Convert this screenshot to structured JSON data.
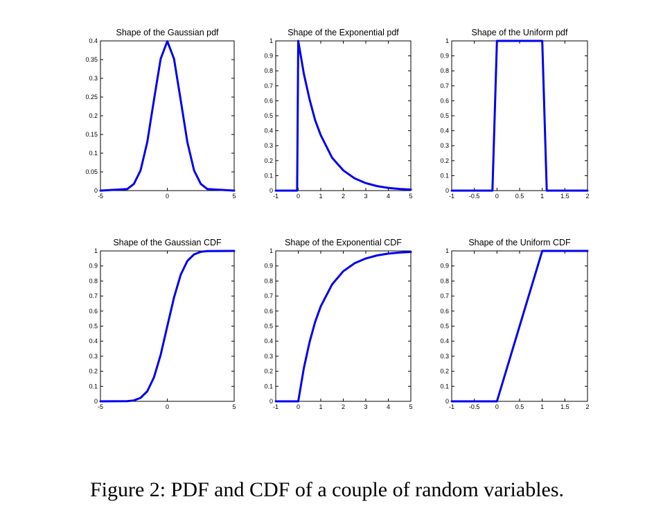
{
  "caption": "Figure 2: PDF and CDF of a couple of random variables.",
  "colors": {
    "series": "#0000ee",
    "axes": "#000000",
    "background": "#ffffff"
  },
  "chart_data": [
    {
      "type": "line",
      "title": "Shape of the Gaussian pdf",
      "xlabel": "",
      "ylabel": "",
      "xlim": [
        -5,
        5
      ],
      "ylim": [
        0,
        0.4
      ],
      "xticks": [
        -5,
        0,
        5
      ],
      "xtick_labels": [
        "-5",
        "0",
        "5"
      ],
      "yticks": [
        0,
        0.05,
        0.1,
        0.15,
        0.2,
        0.25,
        0.3,
        0.35,
        0.4
      ],
      "ytick_labels": [
        "0",
        "0.05",
        "0.1",
        "0.15",
        "0.2",
        "0.25",
        "0.3",
        "0.35",
        "0.4"
      ],
      "grid": false,
      "series": [
        {
          "x": [
            -5,
            -3,
            -2.5,
            -2,
            -1.5,
            -1,
            -0.5,
            0,
            0.5,
            1,
            1.5,
            2,
            2.5,
            3,
            5
          ],
          "values": [
            0,
            0.004,
            0.018,
            0.054,
            0.13,
            0.242,
            0.352,
            0.399,
            0.352,
            0.242,
            0.13,
            0.054,
            0.018,
            0.004,
            0
          ]
        }
      ]
    },
    {
      "type": "line",
      "title": "Shape of the Exponential pdf",
      "xlabel": "",
      "ylabel": "",
      "xlim": [
        -1,
        5
      ],
      "ylim": [
        0,
        1
      ],
      "xticks": [
        -1,
        0,
        1,
        2,
        3,
        4,
        5
      ],
      "xtick_labels": [
        "-1",
        "0",
        "1",
        "2",
        "3",
        "4",
        "5"
      ],
      "yticks": [
        0,
        0.1,
        0.2,
        0.3,
        0.4,
        0.5,
        0.6,
        0.7,
        0.8,
        0.9,
        1
      ],
      "ytick_labels": [
        "0",
        "0.1",
        "0.2",
        "0.3",
        "0.4",
        "0.5",
        "0.6",
        "0.7",
        "0.8",
        "0.9",
        "1"
      ],
      "grid": false,
      "series": [
        {
          "x": [
            -1,
            -0.05,
            0,
            0.25,
            0.5,
            0.75,
            1,
            1.5,
            2,
            2.5,
            3,
            3.5,
            4,
            4.5,
            5
          ],
          "values": [
            0,
            0,
            1,
            0.78,
            0.61,
            0.47,
            0.37,
            0.22,
            0.135,
            0.082,
            0.05,
            0.03,
            0.018,
            0.011,
            0.007
          ]
        }
      ]
    },
    {
      "type": "line",
      "title": "Shape of the Uniform pdf",
      "xlabel": "",
      "ylabel": "",
      "xlim": [
        -1,
        2
      ],
      "ylim": [
        0,
        1
      ],
      "xticks": [
        -1,
        -0.5,
        0,
        0.5,
        1,
        1.5,
        2
      ],
      "xtick_labels": [
        "-1",
        "-0.5",
        "0",
        "0.5",
        "1",
        "1.5",
        "2"
      ],
      "yticks": [
        0,
        0.1,
        0.2,
        0.3,
        0.4,
        0.5,
        0.6,
        0.7,
        0.8,
        0.9,
        1
      ],
      "ytick_labels": [
        "0",
        "0.1",
        "0.2",
        "0.3",
        "0.4",
        "0.5",
        "0.6",
        "0.7",
        "0.8",
        "0.9",
        "1"
      ],
      "grid": false,
      "series": [
        {
          "x": [
            -1,
            -0.1,
            0,
            1,
            1.1,
            2
          ],
          "values": [
            0,
            0,
            1,
            1,
            0,
            0
          ]
        }
      ]
    },
    {
      "type": "line",
      "title": "Shape of the Gaussian CDF",
      "xlabel": "",
      "ylabel": "",
      "xlim": [
        -5,
        5
      ],
      "ylim": [
        0,
        1
      ],
      "xticks": [
        -5,
        0,
        5
      ],
      "xtick_labels": [
        "-5",
        "0",
        "5"
      ],
      "yticks": [
        0,
        0.1,
        0.2,
        0.3,
        0.4,
        0.5,
        0.6,
        0.7,
        0.8,
        0.9,
        1
      ],
      "ytick_labels": [
        "0",
        "0.1",
        "0.2",
        "0.3",
        "0.4",
        "0.5",
        "0.6",
        "0.7",
        "0.8",
        "0.9",
        "1"
      ],
      "grid": false,
      "series": [
        {
          "x": [
            -5,
            -3,
            -2.5,
            -2,
            -1.5,
            -1,
            -0.5,
            0,
            0.5,
            1,
            1.5,
            2,
            2.5,
            3,
            5
          ],
          "values": [
            0,
            0.001,
            0.006,
            0.023,
            0.067,
            0.159,
            0.309,
            0.5,
            0.691,
            0.841,
            0.933,
            0.977,
            0.994,
            0.999,
            1
          ]
        }
      ]
    },
    {
      "type": "line",
      "title": "Shape of the Exponential CDF",
      "xlabel": "",
      "ylabel": "",
      "xlim": [
        -1,
        5
      ],
      "ylim": [
        0,
        1
      ],
      "xticks": [
        -1,
        0,
        1,
        2,
        3,
        4,
        5
      ],
      "xtick_labels": [
        "-1",
        "0",
        "1",
        "2",
        "3",
        "4",
        "5"
      ],
      "yticks": [
        0,
        0.1,
        0.2,
        0.3,
        0.4,
        0.5,
        0.6,
        0.7,
        0.8,
        0.9,
        1
      ],
      "ytick_labels": [
        "0",
        "0.1",
        "0.2",
        "0.3",
        "0.4",
        "0.5",
        "0.6",
        "0.7",
        "0.8",
        "0.9",
        "1"
      ],
      "grid": false,
      "series": [
        {
          "x": [
            -1,
            0,
            0.25,
            0.5,
            0.75,
            1,
            1.5,
            2,
            2.5,
            3,
            3.5,
            4,
            4.5,
            5
          ],
          "values": [
            0,
            0,
            0.221,
            0.393,
            0.528,
            0.632,
            0.777,
            0.865,
            0.918,
            0.95,
            0.97,
            0.982,
            0.989,
            0.993
          ]
        }
      ]
    },
    {
      "type": "line",
      "title": "Shape of the Uniform CDF",
      "xlabel": "",
      "ylabel": "",
      "xlim": [
        -1,
        2
      ],
      "ylim": [
        0,
        1
      ],
      "xticks": [
        -1,
        -0.5,
        0,
        0.5,
        1,
        1.5,
        2
      ],
      "xtick_labels": [
        "-1",
        "-0.5",
        "0",
        "0.5",
        "1",
        "1.5",
        "2"
      ],
      "yticks": [
        0,
        0.1,
        0.2,
        0.3,
        0.4,
        0.5,
        0.6,
        0.7,
        0.8,
        0.9,
        1
      ],
      "ytick_labels": [
        "0",
        "0.1",
        "0.2",
        "0.3",
        "0.4",
        "0.5",
        "0.6",
        "0.7",
        "0.8",
        "0.9",
        "1"
      ],
      "grid": false,
      "series": [
        {
          "x": [
            -1,
            0,
            1,
            2
          ],
          "values": [
            0,
            0,
            1,
            1
          ]
        }
      ]
    }
  ]
}
